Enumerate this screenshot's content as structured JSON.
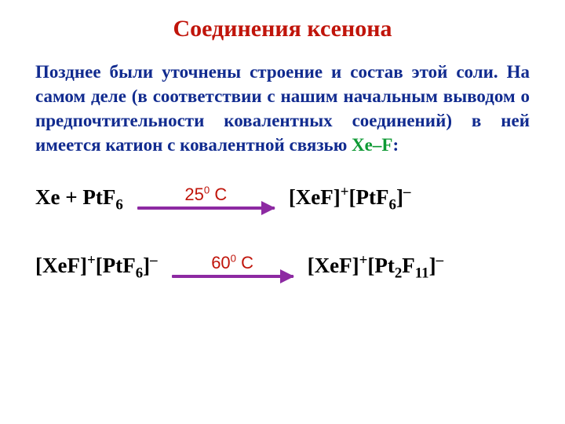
{
  "title": {
    "text": "Соединения ксенона",
    "color": "#c0140a",
    "fontsize": 30
  },
  "paragraph": {
    "color": "#112b8f",
    "fontsize": 23,
    "text_before": "Позднее были уточнены строение и состав этой соли. На самом деле (в соответствии с нашим начальным выводом о предпочтительности ковалентных соединений) в ней имеется катион с ковалентной связью ",
    "xef_text": "Xe–F",
    "xef_color": "#0f9a35",
    "text_after": ":"
  },
  "eq1": {
    "text_color": "#000000",
    "fontsize": 27,
    "lhs": {
      "pre": "Xe + PtF",
      "sub1": "6"
    },
    "arrow": {
      "label_pre": "25",
      "label_sup": "0",
      "label_post": " С",
      "label_color": "#c0140a",
      "label_fontsize": 22,
      "width": 175,
      "color": "#8d2aa2"
    },
    "rhs": {
      "a": "[XeF]",
      "a_sup": "+",
      "b": "[PtF",
      "b_sub": "6",
      "c": "]",
      "c_sup": "–"
    }
  },
  "eq2": {
    "text_color": "#000000",
    "fontsize": 27,
    "lhs": {
      "a": "[XeF]",
      "a_sup": "+",
      "b": "[PtF",
      "b_sub": "6",
      "c": "]",
      "c_sup": "–"
    },
    "arrow": {
      "label_pre": "60",
      "label_sup": "0",
      "label_post": " С",
      "label_color": "#c0140a",
      "label_fontsize": 22,
      "width": 155,
      "color": "#8d2aa2"
    },
    "rhs": {
      "a": "[XeF]",
      "a_sup": "+",
      "b": "[Pt",
      "b_sub": "2",
      "c": "F",
      "c_sub": "11",
      "d": "]",
      "d_sup": "–"
    }
  }
}
